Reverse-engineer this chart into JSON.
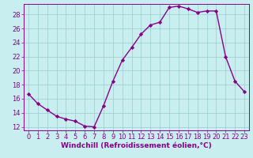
{
  "x": [
    0,
    1,
    2,
    3,
    4,
    5,
    6,
    7,
    8,
    9,
    10,
    11,
    12,
    13,
    14,
    15,
    16,
    17,
    18,
    19,
    20,
    21,
    22,
    23
  ],
  "y": [
    16.7,
    15.3,
    14.4,
    13.5,
    13.1,
    12.8,
    12.1,
    12.0,
    15.0,
    18.5,
    21.5,
    23.3,
    25.2,
    26.5,
    26.9,
    29.0,
    29.2,
    28.8,
    28.3,
    28.5,
    28.5,
    22.0,
    18.5,
    17.0
  ],
  "line_color": "#880088",
  "marker": "D",
  "markersize": 2.2,
  "linewidth": 1.0,
  "bg_color": "#c8eef0",
  "grid_color": "#99cccc",
  "xlabel": "Windchill (Refroidissement éolien,°C)",
  "xlabel_fontsize": 6.5,
  "xtick_labels": [
    "0",
    "1",
    "2",
    "3",
    "4",
    "5",
    "6",
    "7",
    "8",
    "9",
    "10",
    "11",
    "12",
    "13",
    "14",
    "15",
    "16",
    "17",
    "18",
    "19",
    "20",
    "21",
    "22",
    "23"
  ],
  "yticks": [
    12,
    14,
    16,
    18,
    20,
    22,
    24,
    26,
    28
  ],
  "ylim": [
    11.5,
    29.5
  ],
  "xlim": [
    -0.5,
    23.5
  ],
  "tick_fontsize": 6.0
}
